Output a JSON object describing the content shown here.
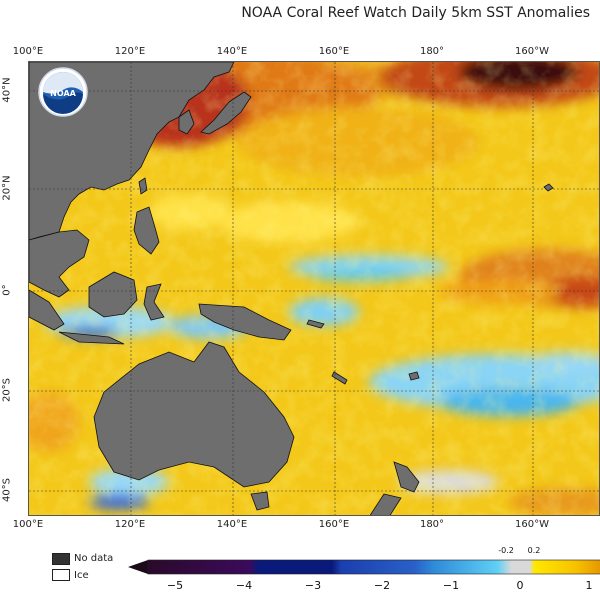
{
  "title": "NOAA Coral Reef Watch Daily 5km SST Anomalies",
  "logo_text": "NOAA",
  "lon_labels": [
    "100°E",
    "120°E",
    "140°E",
    "160°E",
    "180°",
    "160°W"
  ],
  "lat_labels": [
    "40°N",
    "20°N",
    "0°",
    "20°S",
    "40°S"
  ],
  "legend": {
    "no_data": "No data",
    "ice": "Ice"
  },
  "colorbar": {
    "ticks": [
      "−5",
      "−4",
      "−3",
      "−2",
      "−1",
      "0",
      "1"
    ],
    "minor_ticks": [
      "-0.2",
      "0.2"
    ],
    "colors": {
      "deep_neg": "#2a0a2a",
      "neg4": "#3b0a5c",
      "neg3": "#0a1a7a",
      "neg2": "#1b3fae",
      "neg1": "#2f8ad8",
      "neg05": "#5fd0f5",
      "near_zero": "#d9d9d9",
      "pos02": "#ffe800",
      "pos05": "#f7c200",
      "pos1": "#e08a00"
    }
  },
  "colors": {
    "land": "#6e6e6e",
    "ocean_base": "#f3cb1a",
    "warm": "#e58a1a",
    "hot": "#b32a14",
    "cool": "#7fd3ff",
    "neutral": "#cfcfcf"
  }
}
